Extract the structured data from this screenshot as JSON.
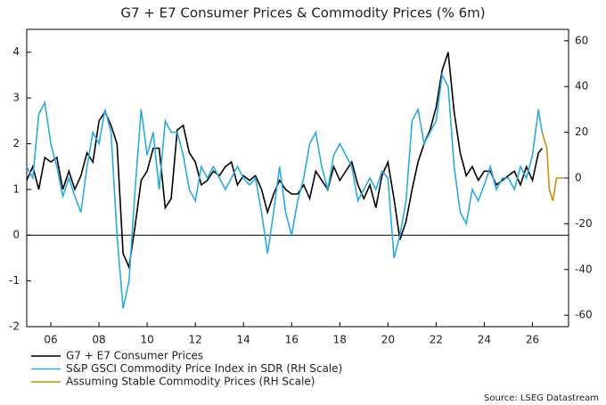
{
  "chart_data": {
    "type": "line",
    "title": "G7 + E7 Consumer Prices & Commodity Prices (% 6m)",
    "source": "Source: LSEG Datastream",
    "x": [
      5.0,
      5.25,
      5.5,
      5.75,
      6.0,
      6.25,
      6.5,
      6.75,
      7.0,
      7.25,
      7.5,
      7.75,
      8.0,
      8.25,
      8.5,
      8.75,
      9.0,
      9.25,
      9.5,
      9.75,
      10.0,
      10.25,
      10.5,
      10.75,
      11.0,
      11.25,
      11.5,
      11.75,
      12.0,
      12.25,
      12.5,
      12.75,
      13.0,
      13.25,
      13.5,
      13.75,
      14.0,
      14.25,
      14.5,
      14.75,
      15.0,
      15.25,
      15.5,
      15.75,
      16.0,
      16.25,
      16.5,
      16.75,
      17.0,
      17.25,
      17.5,
      17.75,
      18.0,
      18.25,
      18.5,
      18.75,
      19.0,
      19.25,
      19.5,
      19.75,
      20.0,
      20.25,
      20.5,
      20.75,
      21.0,
      21.25,
      21.5,
      21.75,
      22.0,
      22.25,
      22.5,
      22.75,
      23.0,
      23.25,
      23.5,
      23.75,
      24.0,
      24.25,
      24.5,
      24.75,
      25.0,
      25.25,
      25.5,
      25.75,
      26.0,
      26.25,
      26.4
    ],
    "series": [
      {
        "name": "G7 + E7 Consumer Prices",
        "color": "#000000",
        "axis": "y",
        "values": [
          1.2,
          1.5,
          1.0,
          1.7,
          1.6,
          1.7,
          1.0,
          1.4,
          1.0,
          1.3,
          1.8,
          1.6,
          2.5,
          2.7,
          2.4,
          2.0,
          -0.4,
          -0.7,
          0.2,
          1.2,
          1.4,
          1.9,
          1.9,
          0.6,
          0.8,
          2.3,
          2.4,
          1.8,
          1.6,
          1.1,
          1.2,
          1.4,
          1.3,
          1.5,
          1.6,
          1.1,
          1.3,
          1.2,
          1.3,
          1.0,
          0.5,
          0.9,
          1.2,
          1.0,
          0.9,
          0.9,
          1.1,
          0.8,
          1.4,
          1.2,
          1.0,
          1.5,
          1.2,
          1.4,
          1.6,
          1.1,
          0.8,
          1.1,
          0.6,
          1.3,
          1.6,
          0.8,
          -0.1,
          0.3,
          1.0,
          1.6,
          2.0,
          2.3,
          2.8,
          3.6,
          4.0,
          2.7,
          1.8,
          1.3,
          1.5,
          1.2,
          1.4,
          1.4,
          1.1,
          1.2,
          1.3,
          1.4,
          1.1,
          1.5,
          1.2,
          1.8,
          1.9
        ]
      },
      {
        "name": "S&P GSCI Commodity Price Index in SDR (RH Scale)",
        "color": "#29abe2",
        "axis": "y2",
        "values": [
          5,
          0,
          28,
          33,
          15,
          5,
          -8,
          0,
          -8,
          -15,
          5,
          20,
          15,
          30,
          20,
          -25,
          -57,
          -45,
          -5,
          30,
          10,
          20,
          -5,
          25,
          20,
          20,
          10,
          -5,
          -10,
          5,
          0,
          5,
          0,
          -5,
          0,
          5,
          0,
          -3,
          0,
          -15,
          -33,
          -15,
          5,
          -15,
          -25,
          -10,
          0,
          15,
          20,
          5,
          -5,
          10,
          15,
          10,
          5,
          -10,
          -5,
          0,
          -5,
          3,
          0,
          -35,
          -25,
          -10,
          25,
          30,
          15,
          20,
          25,
          45,
          40,
          5,
          -15,
          -20,
          -5,
          -10,
          -3,
          5,
          -5,
          0,
          0,
          -5,
          5,
          0,
          10,
          30,
          20
        ]
      },
      {
        "name": "Assuming Stable Commodity Prices (RH Scale)",
        "color": "#c8900a",
        "axis": "y2",
        "x": [
          26.4,
          26.6,
          26.7,
          26.85,
          27.0,
          27.3
        ],
        "values": [
          20,
          13,
          -5,
          -10,
          0,
          0
        ]
      }
    ],
    "xlim": [
      5.0,
      27.5
    ],
    "xticks": [
      {
        "value": 6,
        "label": "06"
      },
      {
        "value": 8,
        "label": "08"
      },
      10,
      12,
      14,
      16,
      18,
      20,
      22,
      24,
      26
    ],
    "ylim": [
      -2,
      4.5
    ],
    "yticks": [
      -2,
      -1,
      0,
      1,
      2,
      3,
      4
    ],
    "y2lim": [
      -65,
      65
    ],
    "y2ticks": [
      -60,
      -40,
      -20,
      0,
      20,
      40,
      60
    ],
    "grid": false
  }
}
